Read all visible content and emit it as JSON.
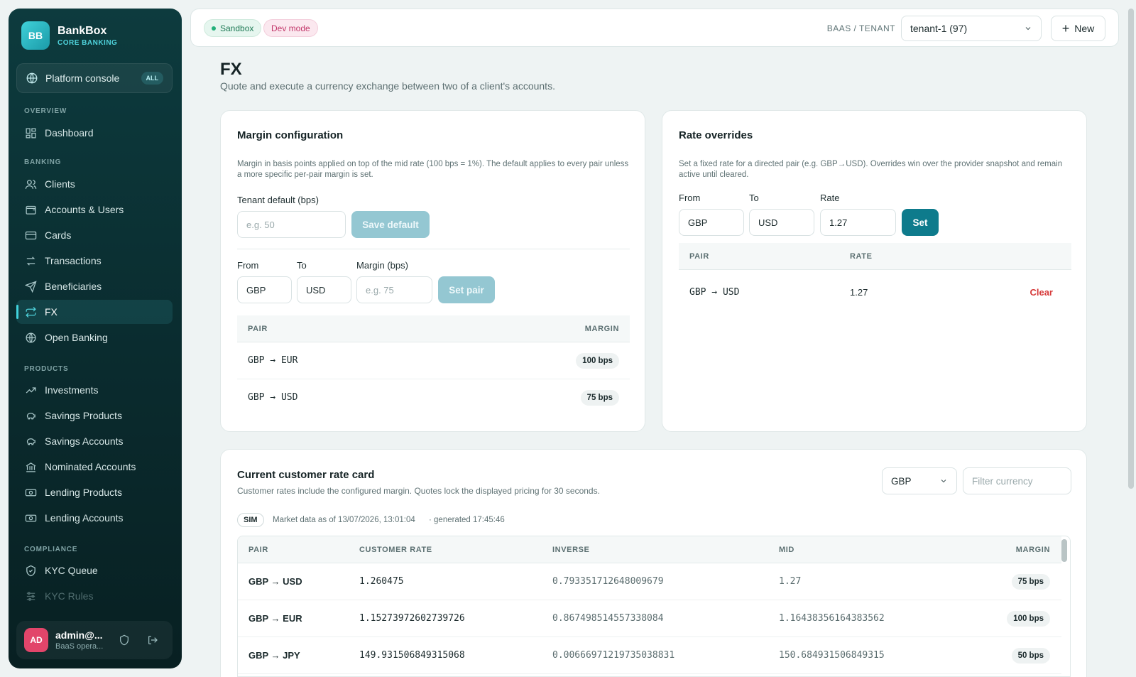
{
  "sidebar": {
    "brand_logo": "BB",
    "brand_name": "BankBox",
    "brand_sub": "CORE BANKING",
    "console_label": "Platform console",
    "console_badge": "ALL",
    "sections": {
      "overview": "OVERVIEW",
      "banking": "BANKING",
      "products": "PRODUCTS",
      "compliance": "COMPLIANCE"
    },
    "items": [
      {
        "label": "Dashboard",
        "icon": "dashboard-icon"
      },
      {
        "label": "Clients",
        "icon": "users-icon"
      },
      {
        "label": "Accounts & Users",
        "icon": "wallet-icon"
      },
      {
        "label": "Cards",
        "icon": "card-icon"
      },
      {
        "label": "Transactions",
        "icon": "transfer-icon"
      },
      {
        "label": "Beneficiaries",
        "icon": "send-icon"
      },
      {
        "label": "FX",
        "icon": "exchange-icon"
      },
      {
        "label": "Open Banking",
        "icon": "globe-icon"
      },
      {
        "label": "Investments",
        "icon": "trend-icon"
      },
      {
        "label": "Savings Products",
        "icon": "piggy-bank-icon"
      },
      {
        "label": "Savings Accounts",
        "icon": "piggy-bank-icon"
      },
      {
        "label": "Nominated Accounts",
        "icon": "bank-icon"
      },
      {
        "label": "Lending Products",
        "icon": "banknote-icon"
      },
      {
        "label": "Lending Accounts",
        "icon": "banknote-icon"
      },
      {
        "label": "KYC Queue",
        "icon": "shield-check-icon"
      },
      {
        "label": "KYC Rules",
        "icon": "sliders-icon"
      }
    ],
    "user": {
      "initials": "AD",
      "name": "admin@...",
      "role": "BaaS opera..."
    }
  },
  "topbar": {
    "sandbox_label": "Sandbox",
    "dev_label": "Dev mode",
    "tenant_label": "BAAS / TENANT",
    "tenant_value": "tenant-1 (97)",
    "new_label": "New"
  },
  "page": {
    "title": "FX",
    "subtitle": "Quote and execute a currency exchange between two of a client's accounts."
  },
  "margin": {
    "title": "Margin configuration",
    "desc": "Margin in basis points applied on top of the mid rate (100 bps = 1%). The default applies to every pair unless a more specific per-pair margin is set.",
    "default_label": "Tenant default (bps)",
    "default_placeholder": "e.g. 50",
    "save_default": "Save default",
    "from_label": "From",
    "to_label": "To",
    "margin_label": "Margin (bps)",
    "from_value": "GBP",
    "to_value": "USD",
    "margin_placeholder": "e.g. 75",
    "set_pair": "Set pair",
    "col_pair": "PAIR",
    "col_margin": "MARGIN",
    "rows": [
      {
        "pair": "GBP → EUR",
        "margin": "100 bps"
      },
      {
        "pair": "GBP → USD",
        "margin": "75 bps"
      }
    ]
  },
  "overrides": {
    "title": "Rate overrides",
    "desc": "Set a fixed rate for a directed pair (e.g. GBP→USD). Overrides win over the provider snapshot and remain active until cleared.",
    "from_label": "From",
    "to_label": "To",
    "rate_label": "Rate",
    "from_value": "GBP",
    "to_value": "USD",
    "rate_value": "1.27",
    "set_label": "Set",
    "col_pair": "PAIR",
    "col_rate": "RATE",
    "rows": [
      {
        "pair": "GBP → USD",
        "rate": "1.27",
        "action": "Clear"
      }
    ]
  },
  "ratecard": {
    "title": "Current customer rate card",
    "desc": "Customer rates include the configured margin. Quotes lock the displayed pricing for 30 seconds.",
    "base_currency": "GBP",
    "filter_placeholder": "Filter currency",
    "sim_badge": "SIM",
    "market_info": "Market data as of 13/07/2026, 13:01:04",
    "generated": "· generated 17:45:46",
    "cols": {
      "pair": "PAIR",
      "customer_rate": "CUSTOMER RATE",
      "inverse": "INVERSE",
      "mid": "MID",
      "margin": "MARGIN"
    },
    "rows": [
      {
        "pair": "GBP → USD",
        "customer_rate": "1.260475",
        "inverse": "0.793351712648009679",
        "mid": "1.27",
        "margin": "75 bps"
      },
      {
        "pair": "GBP → EUR",
        "customer_rate": "1.15273972602739726",
        "inverse": "0.867498514557338084",
        "mid": "1.16438356164383562",
        "margin": "100 bps"
      },
      {
        "pair": "GBP → JPY",
        "customer_rate": "149.931506849315068",
        "inverse": "0.00666971219735038831",
        "mid": "150.684931506849315",
        "margin": "50 bps"
      }
    ]
  }
}
